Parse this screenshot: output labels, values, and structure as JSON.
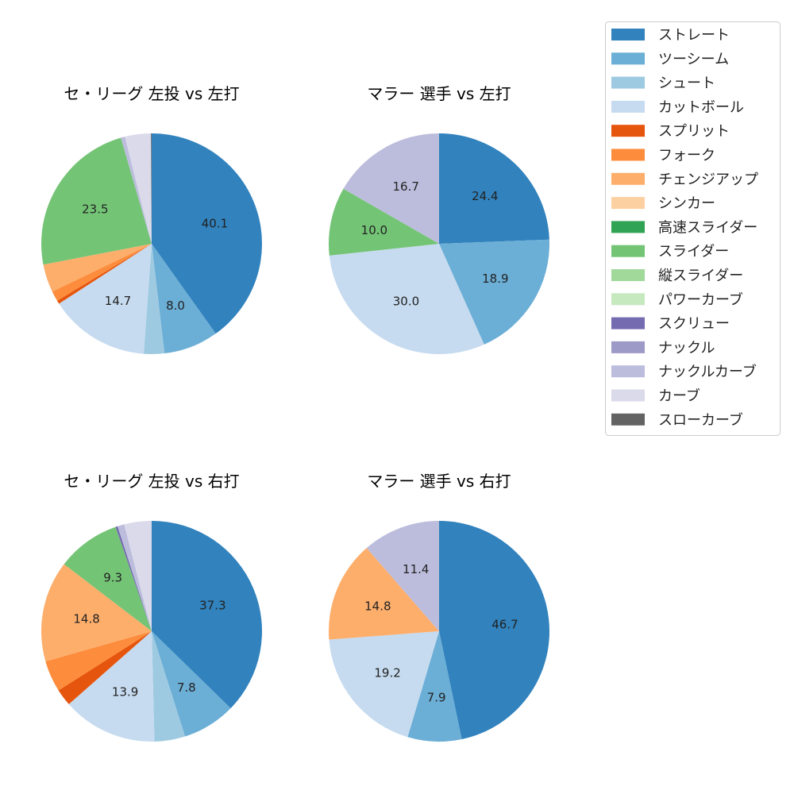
{
  "legend": [
    {
      "label": "ストレート",
      "color": "#3182bd"
    },
    {
      "label": "ツーシーム",
      "color": "#6baed6"
    },
    {
      "label": "シュート",
      "color": "#9ecae1"
    },
    {
      "label": "カットボール",
      "color": "#c6dbef"
    },
    {
      "label": "スプリット",
      "color": "#e6550d"
    },
    {
      "label": "フォーク",
      "color": "#fd8d3c"
    },
    {
      "label": "チェンジアップ",
      "color": "#fdae6b"
    },
    {
      "label": "シンカー",
      "color": "#fdd0a2"
    },
    {
      "label": "高速スライダー",
      "color": "#31a354"
    },
    {
      "label": "スライダー",
      "color": "#74c476"
    },
    {
      "label": "縦スライダー",
      "color": "#a1d99b"
    },
    {
      "label": "パワーカーブ",
      "color": "#c7e9c0"
    },
    {
      "label": "スクリュー",
      "color": "#756bb1"
    },
    {
      "label": "ナックル",
      "color": "#9e9ac8"
    },
    {
      "label": "ナックルカーブ",
      "color": "#bcbddc"
    },
    {
      "label": "カーブ",
      "color": "#dadaeb"
    },
    {
      "label": "スローカーブ",
      "color": "#636363"
    }
  ],
  "chart_data": [
    {
      "type": "pie",
      "title": "セ・リーグ 左投 vs 左打",
      "slices": [
        [
          "ストレート",
          40.1
        ],
        [
          "ツーシーム",
          8.0
        ],
        [
          "シュート",
          3.0
        ],
        [
          "カットボール",
          14.7
        ],
        [
          "スプリット",
          0.5
        ],
        [
          "フォーク",
          1.5
        ],
        [
          "チェンジアップ",
          4.1
        ],
        [
          "スライダー",
          23.5
        ],
        [
          "ナックルカーブ",
          0.6
        ],
        [
          "カーブ",
          3.8
        ],
        [
          "スローカーブ",
          0.1
        ]
      ]
    },
    {
      "type": "pie",
      "title": "マラー 選手 vs 左打",
      "slices": [
        [
          "ストレート",
          24.4
        ],
        [
          "ツーシーム",
          18.9
        ],
        [
          "カットボール",
          30.0
        ],
        [
          "スライダー",
          10.0
        ],
        [
          "ナックルカーブ",
          16.7
        ]
      ]
    },
    {
      "type": "pie",
      "title": "セ・リーグ 左投 vs 右打",
      "slices": [
        [
          "ストレート",
          37.3
        ],
        [
          "ツーシーム",
          7.8
        ],
        [
          "シュート",
          4.5
        ],
        [
          "カットボール",
          13.9
        ],
        [
          "スプリット",
          2.5
        ],
        [
          "フォーク",
          4.6
        ],
        [
          "チェンジアップ",
          14.8
        ],
        [
          "スライダー",
          9.3
        ],
        [
          "スクリュー",
          0.3
        ],
        [
          "ナックルカーブ",
          1.0
        ],
        [
          "カーブ",
          4.0
        ]
      ]
    },
    {
      "type": "pie",
      "title": "マラー 選手 vs 右打",
      "slices": [
        [
          "ストレート",
          46.7
        ],
        [
          "ツーシーム",
          7.9
        ],
        [
          "カットボール",
          19.2
        ],
        [
          "チェンジアップ",
          14.8
        ],
        [
          "ナックルカーブ",
          11.4
        ]
      ]
    }
  ]
}
